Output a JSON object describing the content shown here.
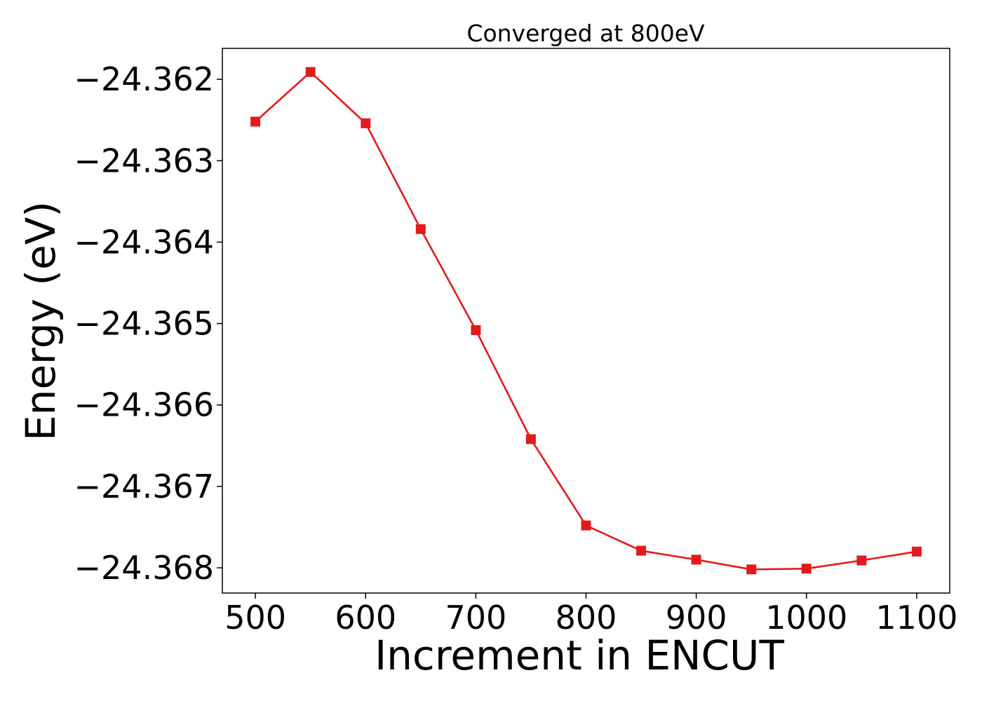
{
  "chart_data": {
    "type": "line",
    "title": "Converged at 800eV",
    "xlabel": "Increment in ENCUT",
    "ylabel": "Energy (eV)",
    "xlim": [
      470,
      1130
    ],
    "ylim": [
      -24.36831,
      -24.36162
    ],
    "xticks": [
      500,
      600,
      700,
      800,
      900,
      1000,
      1100
    ],
    "yticks": [
      -24.362,
      -24.363,
      -24.364,
      -24.365,
      -24.366,
      -24.367,
      -24.368
    ],
    "ytick_labels": [
      "−24.362",
      "−24.363",
      "−24.364",
      "−24.365",
      "−24.366",
      "−24.367",
      "−24.368"
    ],
    "grid": false,
    "series": [
      {
        "color": "#e31a1c",
        "marker": "square",
        "x": [
          500,
          550,
          600,
          650,
          700,
          750,
          800,
          850,
          900,
          950,
          1000,
          1050,
          1100
        ],
        "y": [
          -24.36252,
          -24.36191,
          -24.36254,
          -24.36384,
          -24.36508,
          -24.36642,
          -24.36748,
          -24.36779,
          -24.3679,
          -24.36802,
          -24.36801,
          -24.36791,
          -24.3678
        ]
      }
    ]
  }
}
